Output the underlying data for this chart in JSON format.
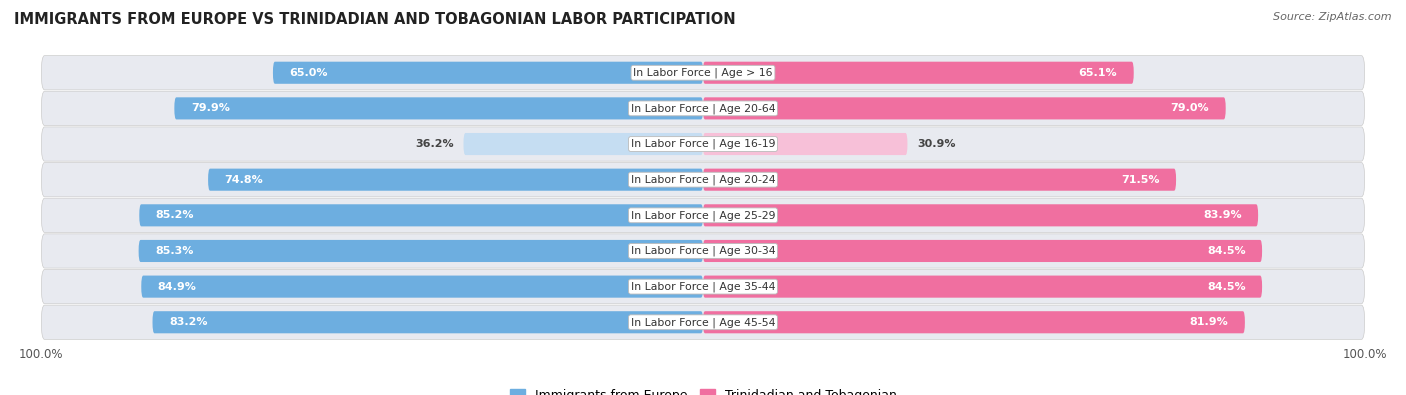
{
  "title": "IMMIGRANTS FROM EUROPE VS TRINIDADIAN AND TOBAGONIAN LABOR PARTICIPATION",
  "source": "Source: ZipAtlas.com",
  "categories": [
    "In Labor Force | Age > 16",
    "In Labor Force | Age 20-64",
    "In Labor Force | Age 16-19",
    "In Labor Force | Age 20-24",
    "In Labor Force | Age 25-29",
    "In Labor Force | Age 30-34",
    "In Labor Force | Age 35-44",
    "In Labor Force | Age 45-54"
  ],
  "europe_values": [
    65.0,
    79.9,
    36.2,
    74.8,
    85.2,
    85.3,
    84.9,
    83.2
  ],
  "tt_values": [
    65.1,
    79.0,
    30.9,
    71.5,
    83.9,
    84.5,
    84.5,
    81.9
  ],
  "europe_color": "#6daee0",
  "europe_color_light": "#c5ddf2",
  "tt_color": "#f06fa0",
  "tt_color_light": "#f7c0d8",
  "row_bg_color": "#e8eaf0",
  "bar_height": 0.62,
  "max_val": 100.0,
  "label_fontsize": 8.0,
  "cat_fontsize": 7.8,
  "title_fontsize": 10.5,
  "legend_fontsize": 9.0,
  "threshold": 50
}
